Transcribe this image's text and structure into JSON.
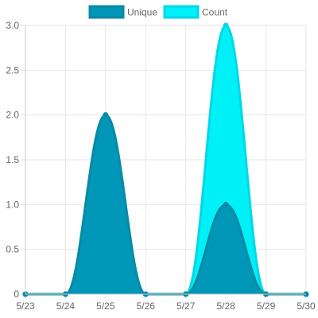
{
  "chart_data": {
    "type": "area",
    "categories": [
      "5/23",
      "5/24",
      "5/25",
      "5/26",
      "5/27",
      "5/28",
      "5/29",
      "5/30"
    ],
    "series": [
      {
        "name": "Unique",
        "values": [
          0,
          0,
          2,
          0,
          0,
          1,
          0,
          0
        ],
        "color": "#0097b8",
        "border": "#0a8aa5"
      },
      {
        "name": "Count",
        "values": [
          0,
          0,
          2,
          0,
          0,
          3,
          0,
          0
        ],
        "color": "#00f0f7",
        "border": "#00d8e8"
      }
    ],
    "y_ticks": [
      "0",
      "0.5",
      "1.0",
      "1.5",
      "2.0",
      "2.5",
      "3.0"
    ],
    "ylim": [
      0,
      3
    ],
    "grid": true,
    "legend_position": "top"
  }
}
